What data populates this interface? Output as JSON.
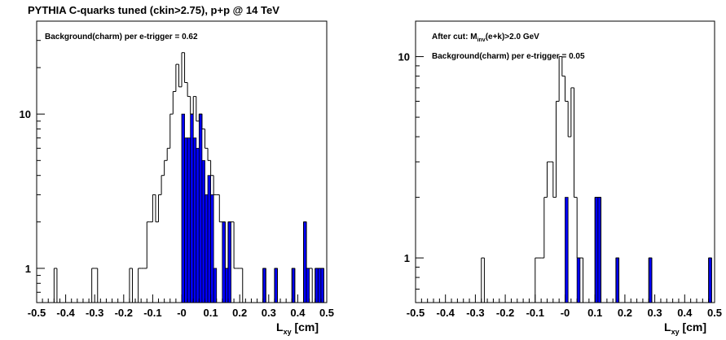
{
  "figure_title": "PYTHIA C-quarks tuned (ckin>2.75), p+p @ 14 TeV",
  "colors": {
    "fill": "#0000ff",
    "line": "#000000",
    "background": "#ffffff"
  },
  "chart_data": [
    {
      "type": "bar",
      "subtype": "histogram-step",
      "scale_y": "log",
      "xlim": [
        -0.5,
        0.5
      ],
      "ylim": [
        0.6,
        40
      ],
      "xlabel_main": "L",
      "xlabel_sub": "xy",
      "xlabel_unit": " [cm]",
      "x_tick_labels": [
        "-0.5",
        "-0.4",
        "-0.3",
        "-0.2",
        "-0.1",
        "-0",
        "0.1",
        "0.2",
        "0.3",
        "0.4",
        "0.5"
      ],
      "x_tick_values": [
        -0.5,
        -0.4,
        -0.3,
        -0.2,
        -0.1,
        0,
        0.1,
        0.2,
        0.3,
        0.4,
        0.5
      ],
      "y_tick_labels": [
        "1",
        "10"
      ],
      "y_tick_values": [
        1,
        10
      ],
      "annotations": [
        {
          "text": "Background(charm) per e-trigger = 0.62"
        }
      ],
      "bin_width": 0.01,
      "series": [
        {
          "style": "outline",
          "bins": [
            {
              "x": -0.44,
              "y": 1
            },
            {
              "x": -0.31,
              "y": 1
            },
            {
              "x": -0.3,
              "y": 1
            },
            {
              "x": -0.18,
              "y": 1
            },
            {
              "x": -0.15,
              "y": 1
            },
            {
              "x": -0.14,
              "y": 1
            },
            {
              "x": -0.13,
              "y": 1
            },
            {
              "x": -0.12,
              "y": 2
            },
            {
              "x": -0.11,
              "y": 2
            },
            {
              "x": -0.1,
              "y": 3
            },
            {
              "x": -0.09,
              "y": 2
            },
            {
              "x": -0.08,
              "y": 3
            },
            {
              "x": -0.07,
              "y": 4
            },
            {
              "x": -0.06,
              "y": 5
            },
            {
              "x": -0.05,
              "y": 6
            },
            {
              "x": -0.04,
              "y": 10
            },
            {
              "x": -0.03,
              "y": 14
            },
            {
              "x": -0.02,
              "y": 21
            },
            {
              "x": -0.01,
              "y": 15
            },
            {
              "x": 0.0,
              "y": 25
            },
            {
              "x": 0.01,
              "y": 16
            },
            {
              "x": 0.02,
              "y": 13
            },
            {
              "x": 0.03,
              "y": 10
            },
            {
              "x": 0.04,
              "y": 13
            },
            {
              "x": 0.05,
              "y": 9
            },
            {
              "x": 0.06,
              "y": 10
            },
            {
              "x": 0.07,
              "y": 8
            },
            {
              "x": 0.08,
              "y": 6
            },
            {
              "x": 0.09,
              "y": 5
            },
            {
              "x": 0.1,
              "y": 4
            },
            {
              "x": 0.11,
              "y": 3
            },
            {
              "x": 0.12,
              "y": 3
            },
            {
              "x": 0.13,
              "y": 2
            },
            {
              "x": 0.14,
              "y": 2
            },
            {
              "x": 0.15,
              "y": 1
            },
            {
              "x": 0.16,
              "y": 2
            },
            {
              "x": 0.17,
              "y": 2
            },
            {
              "x": 0.18,
              "y": 1
            },
            {
              "x": 0.19,
              "y": 1
            },
            {
              "x": 0.2,
              "y": 1
            },
            {
              "x": 0.28,
              "y": 1
            },
            {
              "x": 0.32,
              "y": 1
            },
            {
              "x": 0.38,
              "y": 1
            },
            {
              "x": 0.42,
              "y": 2
            },
            {
              "x": 0.43,
              "y": 1
            },
            {
              "x": 0.44,
              "y": 1
            },
            {
              "x": 0.46,
              "y": 1
            },
            {
              "x": 0.47,
              "y": 1
            },
            {
              "x": 0.48,
              "y": 1
            }
          ]
        },
        {
          "style": "filled",
          "bins": [
            {
              "x": 0.0,
              "y": 10
            },
            {
              "x": 0.01,
              "y": 7
            },
            {
              "x": 0.02,
              "y": 7
            },
            {
              "x": 0.03,
              "y": 10
            },
            {
              "x": 0.04,
              "y": 7
            },
            {
              "x": 0.05,
              "y": 6
            },
            {
              "x": 0.06,
              "y": 10
            },
            {
              "x": 0.07,
              "y": 5
            },
            {
              "x": 0.08,
              "y": 3
            },
            {
              "x": 0.09,
              "y": 4
            },
            {
              "x": 0.1,
              "y": 3
            },
            {
              "x": 0.11,
              "y": 1
            },
            {
              "x": 0.14,
              "y": 2
            },
            {
              "x": 0.15,
              "y": 1
            },
            {
              "x": 0.16,
              "y": 2
            },
            {
              "x": 0.28,
              "y": 1
            },
            {
              "x": 0.32,
              "y": 1
            },
            {
              "x": 0.38,
              "y": 1
            },
            {
              "x": 0.42,
              "y": 2
            },
            {
              "x": 0.43,
              "y": 1
            },
            {
              "x": 0.46,
              "y": 1
            },
            {
              "x": 0.47,
              "y": 1
            },
            {
              "x": 0.48,
              "y": 1
            }
          ]
        }
      ]
    },
    {
      "type": "bar",
      "subtype": "histogram-step",
      "scale_y": "log",
      "xlim": [
        -0.5,
        0.5
      ],
      "ylim": [
        0.6,
        15
      ],
      "xlabel_main": "L",
      "xlabel_sub": "xy",
      "xlabel_unit": " [cm]",
      "x_tick_labels": [
        "-0.5",
        "-0.4",
        "-0.3",
        "-0.2",
        "-0.1",
        "-0",
        "0.1",
        "0.2",
        "0.3",
        "0.4",
        "0.5"
      ],
      "x_tick_values": [
        -0.5,
        -0.4,
        -0.3,
        -0.2,
        -0.1,
        0,
        0.1,
        0.2,
        0.3,
        0.4,
        0.5
      ],
      "y_tick_labels": [
        "1",
        "10"
      ],
      "y_tick_values": [
        1,
        10
      ],
      "annotations": [
        {
          "text_pre": "After cut: M",
          "text_sub": "inv",
          "text_post": "(e+k)>2.0 GeV"
        },
        {
          "text": "Background(charm) per e-trigger = 0.05"
        }
      ],
      "bin_width": 0.01,
      "series": [
        {
          "style": "outline",
          "bins": [
            {
              "x": -0.28,
              "y": 1
            },
            {
              "x": -0.1,
              "y": 1
            },
            {
              "x": -0.09,
              "y": 1
            },
            {
              "x": -0.08,
              "y": 1
            },
            {
              "x": -0.07,
              "y": 2
            },
            {
              "x": -0.06,
              "y": 3
            },
            {
              "x": -0.05,
              "y": 3
            },
            {
              "x": -0.04,
              "y": 2
            },
            {
              "x": -0.03,
              "y": 6
            },
            {
              "x": -0.02,
              "y": 10
            },
            {
              "x": -0.01,
              "y": 8
            },
            {
              "x": 0.0,
              "y": 6
            },
            {
              "x": 0.01,
              "y": 4
            },
            {
              "x": 0.02,
              "y": 7
            },
            {
              "x": 0.03,
              "y": 2
            },
            {
              "x": 0.04,
              "y": 1
            },
            {
              "x": 0.05,
              "y": 1
            },
            {
              "x": 0.1,
              "y": 2
            },
            {
              "x": 0.11,
              "y": 2
            },
            {
              "x": 0.17,
              "y": 1
            },
            {
              "x": 0.28,
              "y": 1
            },
            {
              "x": 0.48,
              "y": 1
            }
          ]
        },
        {
          "style": "filled",
          "bins": [
            {
              "x": 0.0,
              "y": 2
            },
            {
              "x": 0.04,
              "y": 1
            },
            {
              "x": 0.1,
              "y": 2
            },
            {
              "x": 0.11,
              "y": 2
            },
            {
              "x": 0.17,
              "y": 1
            },
            {
              "x": 0.28,
              "y": 1
            },
            {
              "x": 0.48,
              "y": 1
            }
          ]
        }
      ]
    }
  ]
}
